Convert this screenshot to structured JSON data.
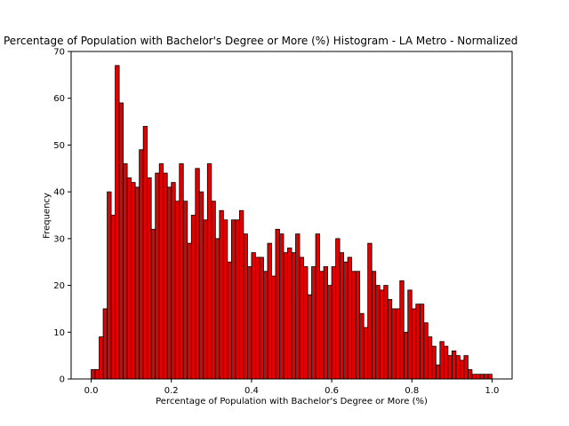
{
  "chart_data": {
    "type": "bar",
    "title": "Percentage of Population with Bachelor's Degree or More (%) Histogram - LA Metro - Normalized",
    "xlabel": "Percentage of Population with Bachelor's Degree or More (%)",
    "ylabel": "Frequency",
    "bar_color": "#e30000",
    "edge_color": "#000000",
    "bin_width": 0.01,
    "x_start": 0.0,
    "xlim": [
      -0.05,
      1.05
    ],
    "ylim": [
      0,
      70
    ],
    "xticks": [
      0.0,
      0.2,
      0.4,
      0.6,
      0.8,
      1.0
    ],
    "xtick_labels": [
      "0.0",
      "0.2",
      "0.4",
      "0.6",
      "0.8",
      "1.0"
    ],
    "yticks": [
      0,
      10,
      20,
      30,
      40,
      50,
      60,
      70
    ],
    "ytick_labels": [
      "0",
      "10",
      "20",
      "30",
      "40",
      "50",
      "60",
      "70"
    ],
    "grid": false,
    "values": [
      2,
      2,
      9,
      15,
      40,
      35,
      67,
      59,
      46,
      43,
      42,
      41,
      49,
      54,
      43,
      32,
      44,
      46,
      44,
      41,
      42,
      38,
      46,
      38,
      29,
      35,
      45,
      40,
      34,
      46,
      38,
      30,
      36,
      34,
      25,
      34,
      34,
      36,
      31,
      24,
      27,
      26,
      26,
      23,
      29,
      22,
      32,
      31,
      27,
      28,
      27,
      31,
      26,
      24,
      18,
      24,
      31,
      23,
      24,
      20,
      24,
      30,
      27,
      25,
      26,
      23,
      23,
      14,
      11,
      29,
      23,
      20,
      19,
      20,
      17,
      15,
      15,
      21,
      10,
      19,
      15,
      16,
      16,
      12,
      9,
      7,
      3,
      8,
      7,
      5,
      6,
      5,
      4,
      5,
      2,
      1,
      1,
      1,
      1,
      1
    ]
  }
}
